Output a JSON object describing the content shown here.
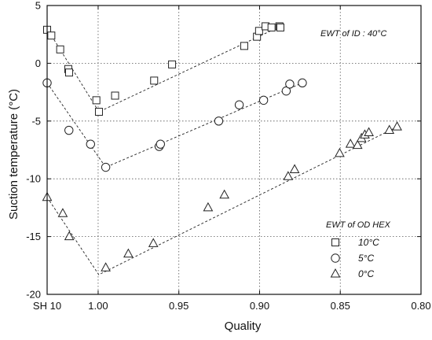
{
  "chart_data": {
    "type": "scatter",
    "title": "",
    "xlabel": "Quality",
    "ylabel": "Suction temperature (°C)",
    "xlim": [
      1.0316,
      0.8
    ],
    "ylim": [
      -20,
      5
    ],
    "x_reversed": true,
    "grid": true,
    "x_ticks": [
      {
        "value": 1.0316,
        "label": "SH 10"
      },
      {
        "value": 1.0,
        "label": "1.00"
      },
      {
        "value": 0.95,
        "label": "0.95"
      },
      {
        "value": 0.9,
        "label": "0.90"
      },
      {
        "value": 0.85,
        "label": "0.85"
      },
      {
        "value": 0.8,
        "label": "0.80"
      }
    ],
    "y_ticks": [
      5,
      0,
      -5,
      -10,
      -15,
      -20
    ],
    "annotation": "EWT of ID : 40°C",
    "legend": {
      "title": "EWT of OD HEX",
      "position": "bottom-right"
    },
    "series": [
      {
        "name": "10°C",
        "marker": "square",
        "points": [
          [
            1.0316,
            2.9
          ],
          [
            1.029,
            2.4
          ],
          [
            1.0235,
            1.2
          ],
          [
            1.0185,
            -0.5
          ],
          [
            1.018,
            -0.8
          ],
          [
            1.0011,
            -3.2
          ],
          [
            0.9995,
            -4.2
          ],
          [
            0.9895,
            -2.8
          ],
          [
            0.9653,
            -1.5
          ],
          [
            0.9542,
            -0.1
          ],
          [
            0.9095,
            1.5
          ],
          [
            0.9016,
            2.3
          ],
          [
            0.9003,
            2.8
          ],
          [
            0.8963,
            3.2
          ],
          [
            0.8926,
            3.1
          ],
          [
            0.8877,
            3.2
          ],
          [
            0.8871,
            3.1
          ]
        ],
        "trend": [
          [
            1.0316,
            3.0
          ],
          [
            0.9995,
            -4.2
          ],
          [
            0.8871,
            3.2
          ]
        ]
      },
      {
        "name": "5°C",
        "marker": "circle",
        "points": [
          [
            1.0316,
            -1.7
          ],
          [
            1.0181,
            -5.8
          ],
          [
            1.0047,
            -7.0
          ],
          [
            0.9953,
            -9.0
          ],
          [
            0.9622,
            -7.2
          ],
          [
            0.9614,
            -7.0
          ],
          [
            0.9253,
            -5.0
          ],
          [
            0.9126,
            -3.6
          ],
          [
            0.8975,
            -3.2
          ],
          [
            0.8835,
            -2.4
          ],
          [
            0.8813,
            -1.8
          ],
          [
            0.8735,
            -1.7
          ]
        ],
        "trend": [
          [
            1.0316,
            -1.7
          ],
          [
            0.9953,
            -9.0
          ],
          [
            0.8735,
            -1.7
          ]
        ]
      },
      {
        "name": "0°C",
        "marker": "triangle",
        "points": [
          [
            1.0316,
            -11.6
          ],
          [
            1.0219,
            -13.0
          ],
          [
            1.0179,
            -15.0
          ],
          [
            0.9953,
            -17.7
          ],
          [
            0.9813,
            -16.5
          ],
          [
            0.9658,
            -15.6
          ],
          [
            0.9319,
            -12.5
          ],
          [
            0.9218,
            -11.4
          ],
          [
            0.8823,
            -9.8
          ],
          [
            0.8783,
            -9.2
          ],
          [
            0.8504,
            -7.8
          ],
          [
            0.8437,
            -7.0
          ],
          [
            0.8393,
            -7.1
          ],
          [
            0.8369,
            -6.5
          ],
          [
            0.8348,
            -6.2
          ],
          [
            0.8323,
            -6.0
          ],
          [
            0.8196,
            -5.8
          ],
          [
            0.8148,
            -5.5
          ]
        ],
        "trend": [
          [
            1.0316,
            -11.6
          ],
          [
            0.9996,
            -18.3
          ],
          [
            0.8148,
            -5.5
          ]
        ]
      }
    ]
  }
}
